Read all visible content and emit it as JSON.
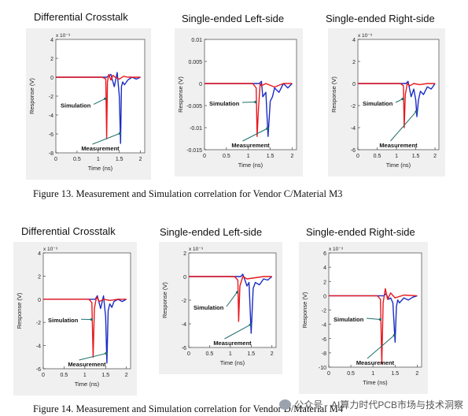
{
  "figure13": {
    "caption": "Figure 13.  Measurement and Simulation correlation for Vendor C/Material M3",
    "titles": [
      "Differential Crosstalk",
      "Single-ended Left-side",
      "Single-ended Right-side"
    ]
  },
  "figure14": {
    "caption": "Figure 14.  Measurement and Simulation correlation for Vendor D/Material M4",
    "titles": [
      "Differential Crosstalk",
      "Single-ended Left-side",
      "Single-ended Right-side"
    ]
  },
  "watermark": "公众号 · AI算力时代PCB市场与技术洞察",
  "colors": {
    "simulation": "#e8171c",
    "measurement": "#1b2cc4",
    "arrow": "#1f6f6a"
  },
  "chart_data": [
    {
      "type": "line",
      "xlabel": "Time (ns)",
      "ylabel": "Response (V)",
      "exponent": "x 10⁻³",
      "xlim": [
        0,
        2.1
      ],
      "ylim": [
        -8,
        4
      ],
      "xticks": [
        "0",
        "0.5",
        "1",
        "1.5",
        "2"
      ],
      "yticks": [
        "4",
        "2",
        "0",
        "-2",
        "-4",
        "-6",
        "-8"
      ],
      "series": [
        {
          "name": "Simulation",
          "x": [
            0,
            1.1,
            1.18,
            1.2,
            1.22,
            1.25,
            1.3,
            1.35,
            1.4,
            1.5,
            1.6,
            1.7,
            2.0
          ],
          "y": [
            0,
            0,
            -0.2,
            -6.5,
            -0.5,
            0.3,
            -0.3,
            0.2,
            0,
            -0.2,
            0.1,
            0,
            0
          ]
        },
        {
          "name": "Measurement",
          "x": [
            0,
            1.2,
            1.3,
            1.38,
            1.45,
            1.5,
            1.53,
            1.55,
            1.58,
            1.62,
            1.7,
            1.8,
            1.9,
            2.0
          ],
          "y": [
            0,
            0,
            0.3,
            -1,
            0.5,
            -2,
            -7,
            -1,
            -0.5,
            -0.8,
            -0.3,
            0,
            -0.2,
            0
          ]
        }
      ],
      "annotations": [
        "Simulation",
        "Measurement"
      ]
    },
    {
      "type": "line",
      "xlabel": "Time (ns)",
      "ylabel": "Response (V)",
      "exponent": "",
      "xlim": [
        0,
        2.1
      ],
      "ylim": [
        -0.015,
        0.01
      ],
      "xticks": [
        "0",
        "0.5",
        "1",
        "1.5",
        "2"
      ],
      "yticks": [
        "0.01",
        "0.005",
        "0",
        "-0.005",
        "-0.01",
        "-0.015"
      ],
      "series": [
        {
          "name": "Simulation",
          "x": [
            0,
            1.1,
            1.18,
            1.2,
            1.23,
            1.27,
            1.3,
            1.4,
            1.6,
            1.8,
            2.0
          ],
          "y": [
            0,
            0,
            -0.001,
            -0.012,
            -0.006,
            0,
            -0.0005,
            0,
            -0.0008,
            0,
            0
          ]
        },
        {
          "name": "Measurement",
          "x": [
            0,
            1.25,
            1.3,
            1.33,
            1.4,
            1.45,
            1.5,
            1.55,
            1.6,
            1.7,
            1.8,
            1.9,
            2.0
          ],
          "y": [
            0,
            0,
            0.0005,
            -0.003,
            -0.002,
            -0.012,
            -0.004,
            -0.003,
            -0.001,
            -0.002,
            0,
            -0.001,
            0
          ]
        }
      ],
      "annotations": [
        "Simulation",
        "Measurement"
      ]
    },
    {
      "type": "line",
      "xlabel": "Time (ns)",
      "ylabel": "Response (V)",
      "exponent": "x 10⁻³",
      "xlim": [
        0,
        2.1
      ],
      "ylim": [
        -6,
        4
      ],
      "xticks": [
        "0",
        "0.5",
        "1",
        "1.5",
        "2"
      ],
      "yticks": [
        "4",
        "2",
        "0",
        "-2",
        "-4",
        "-6"
      ],
      "series": [
        {
          "name": "Simulation",
          "x": [
            0,
            1.1,
            1.18,
            1.2,
            1.23,
            1.28,
            1.35,
            1.45,
            1.6,
            1.8,
            2.0
          ],
          "y": [
            0,
            0,
            -0.2,
            -4,
            -1,
            0,
            -0.2,
            0,
            -0.1,
            0,
            0
          ]
        },
        {
          "name": "Measurement",
          "x": [
            0,
            1.25,
            1.3,
            1.38,
            1.45,
            1.5,
            1.53,
            1.57,
            1.62,
            1.7,
            1.8,
            1.9,
            2.0
          ],
          "y": [
            0,
            0,
            0.2,
            -1.2,
            -0.5,
            -1.5,
            -3,
            -1.5,
            -0.7,
            -1,
            -0.3,
            -0.5,
            0
          ]
        }
      ],
      "annotations": [
        "Simulation",
        "Measurement"
      ]
    },
    {
      "type": "line",
      "xlabel": "Time (ns)",
      "ylabel": "Response (V)",
      "exponent": "x 10⁻³",
      "xlim": [
        0,
        2.1
      ],
      "ylim": [
        -6,
        4
      ],
      "xticks": [
        "0",
        "0.5",
        "1",
        "1.5",
        "2"
      ],
      "yticks": [
        "4",
        "2",
        "0",
        "-2",
        "-4",
        "-6"
      ],
      "series": [
        {
          "name": "Simulation",
          "x": [
            0,
            1.1,
            1.17,
            1.2,
            1.23,
            1.28,
            1.35,
            1.45,
            1.6,
            1.8,
            2.0
          ],
          "y": [
            0,
            0,
            -0.3,
            -5,
            -0.8,
            0.2,
            -0.2,
            0,
            -0.1,
            0,
            0
          ]
        },
        {
          "name": "Measurement",
          "x": [
            0,
            1.25,
            1.3,
            1.38,
            1.45,
            1.5,
            1.53,
            1.56,
            1.6,
            1.65,
            1.7,
            1.8,
            1.9,
            2.0
          ],
          "y": [
            0,
            0,
            0.3,
            -0.8,
            0.3,
            -1.5,
            -5.5,
            -1,
            -0.4,
            -0.7,
            -0.2,
            0,
            -0.2,
            0
          ]
        }
      ],
      "annotations": [
        "Simulation",
        "Measurement"
      ]
    },
    {
      "type": "line",
      "xlabel": "Time (ns)",
      "ylabel": "Response (V)",
      "exponent": "x 10⁻³",
      "xlim": [
        0,
        2.1
      ],
      "ylim": [
        -6,
        2
      ],
      "xticks": [
        "0",
        "0.5",
        "1",
        "1.5",
        "2"
      ],
      "yticks": [
        "2",
        "0",
        "-2",
        "-4",
        "-6"
      ],
      "series": [
        {
          "name": "Simulation",
          "x": [
            0,
            1.1,
            1.18,
            1.2,
            1.23,
            1.3,
            1.4,
            1.6,
            1.8,
            2.0
          ],
          "y": [
            0,
            0,
            -0.3,
            -3.8,
            -0.8,
            0,
            -0.2,
            -0.1,
            0,
            0
          ]
        },
        {
          "name": "Measurement",
          "x": [
            0,
            1.25,
            1.3,
            1.35,
            1.4,
            1.45,
            1.5,
            1.55,
            1.6,
            1.7,
            1.8,
            1.9,
            2.0
          ],
          "y": [
            0,
            0,
            0.2,
            -0.3,
            -0.8,
            -0.5,
            -4.8,
            -1,
            -0.5,
            -0.7,
            -0.2,
            -0.3,
            0
          ]
        }
      ],
      "annotations": [
        "Simulation",
        "Measurement"
      ]
    },
    {
      "type": "line",
      "xlabel": "Time (ns)",
      "ylabel": "Response (V)",
      "exponent": "x 10⁻³",
      "xlim": [
        0,
        2.1
      ],
      "ylim": [
        -10,
        6
      ],
      "xticks": [
        "0",
        "0.5",
        "1",
        "1.5",
        "2"
      ],
      "yticks": [
        "6",
        "4",
        "2",
        "0",
        "-2",
        "-4",
        "-6",
        "-8",
        "-10"
      ],
      "series": [
        {
          "name": "Simulation",
          "x": [
            0,
            1.1,
            1.17,
            1.2,
            1.23,
            1.28,
            1.33,
            1.4,
            1.5,
            1.7,
            2.0
          ],
          "y": [
            0,
            0,
            -0.5,
            -9.5,
            -1,
            1,
            -0.5,
            0.4,
            -0.3,
            0.1,
            0
          ]
        },
        {
          "name": "Measurement",
          "x": [
            0,
            1.25,
            1.3,
            1.35,
            1.4,
            1.45,
            1.5,
            1.53,
            1.56,
            1.6,
            1.7,
            1.8,
            1.9,
            2.0
          ],
          "y": [
            0,
            0,
            0.3,
            -0.5,
            -0.3,
            -1,
            -6.5,
            -1.5,
            -0.6,
            -1,
            -0.3,
            -0.6,
            -0.2,
            0
          ]
        }
      ],
      "annotations": [
        "Simulation",
        "Measurement"
      ]
    }
  ]
}
